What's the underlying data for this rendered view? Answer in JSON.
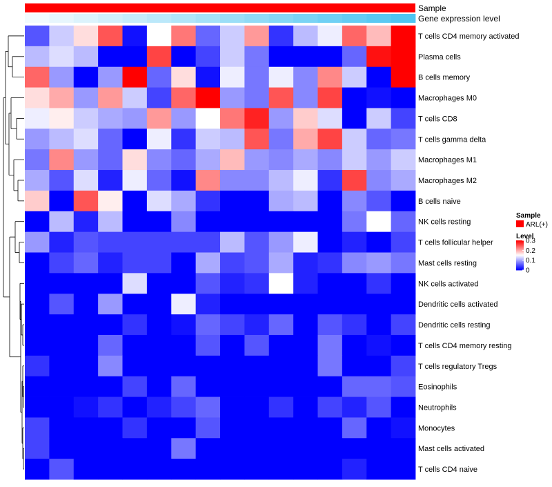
{
  "chart_data": {
    "type": "heatmap",
    "annotation_tracks": [
      {
        "name": "Sample",
        "color": "#ff0000"
      },
      {
        "name": "Gene expression level",
        "color_from": "#f2fafe",
        "color_to": "#4ec5f1"
      }
    ],
    "rows": [
      "T cells CD4 memory activated",
      "Plasma cells",
      "B cells memory",
      "Macrophages M0",
      "T cells CD8",
      "T cells gamma delta",
      "Macrophages M1",
      "Macrophages M2",
      "B cells naive",
      "NK cells resting",
      "T cells follicular helper",
      "Mast cells resting",
      "NK cells activated",
      "Dendritic cells activated",
      "Dendritic cells resting",
      "T cells CD4 memory resting",
      "T cells regulatory  Tregs",
      "Eosinophils",
      "Neutrophils",
      "Monocytes",
      "Mast cells activated",
      "T cells CD4 naive"
    ],
    "n_columns": 16,
    "values": [
      [
        0.05,
        0.12,
        0.17,
        0.25,
        0.01,
        0.15,
        0.23,
        0.06,
        0.12,
        0.21,
        0.03,
        0.11,
        0.14,
        0.24,
        0.19,
        0.3
      ],
      [
        0.11,
        0.13,
        0.11,
        0.0,
        0.0,
        0.26,
        0.0,
        0.04,
        0.12,
        0.07,
        0.0,
        0.0,
        0.0,
        0.06,
        0.29,
        0.3
      ],
      [
        0.24,
        0.09,
        0.0,
        0.09,
        0.3,
        0.06,
        0.17,
        0.01,
        0.14,
        0.07,
        0.14,
        0.08,
        0.22,
        0.12,
        0.0,
        0.3
      ],
      [
        0.17,
        0.2,
        0.09,
        0.21,
        0.12,
        0.04,
        0.24,
        0.3,
        0.09,
        0.07,
        0.25,
        0.08,
        0.26,
        0.0,
        0.01,
        0.0
      ],
      [
        0.14,
        0.16,
        0.12,
        0.1,
        0.09,
        0.21,
        0.09,
        0.15,
        0.23,
        0.28,
        0.09,
        0.18,
        0.13,
        0.0,
        0.12,
        0.04
      ],
      [
        0.09,
        0.11,
        0.13,
        0.06,
        0.0,
        0.14,
        0.03,
        0.12,
        0.11,
        0.25,
        0.07,
        0.2,
        0.26,
        0.12,
        0.06,
        0.07
      ],
      [
        0.07,
        0.22,
        0.09,
        0.06,
        0.17,
        0.08,
        0.06,
        0.1,
        0.19,
        0.09,
        0.08,
        0.1,
        0.08,
        0.12,
        0.09,
        0.12
      ],
      [
        0.1,
        0.05,
        0.13,
        0.02,
        0.14,
        0.06,
        0.01,
        0.22,
        0.08,
        0.08,
        0.11,
        0.14,
        0.03,
        0.26,
        0.08,
        0.1
      ],
      [
        0.18,
        0.0,
        0.25,
        0.16,
        0.0,
        0.13,
        0.1,
        0.03,
        0.0,
        0.0,
        0.1,
        0.11,
        0.0,
        0.08,
        0.05,
        0.0
      ],
      [
        0.0,
        0.11,
        0.02,
        0.11,
        0.0,
        0.0,
        0.08,
        0.0,
        0.0,
        0.0,
        0.0,
        0.0,
        0.0,
        0.07,
        0.15,
        0.06
      ],
      [
        0.09,
        0.02,
        0.05,
        0.04,
        0.04,
        0.04,
        0.04,
        0.04,
        0.11,
        0.05,
        0.09,
        0.14,
        0.0,
        0.02,
        0.0,
        0.04
      ],
      [
        0.0,
        0.04,
        0.06,
        0.02,
        0.04,
        0.04,
        0.0,
        0.1,
        0.04,
        0.05,
        0.1,
        0.02,
        0.03,
        0.08,
        0.09,
        0.07
      ],
      [
        0.0,
        0.0,
        0.0,
        0.0,
        0.13,
        0.0,
        0.0,
        0.05,
        0.02,
        0.03,
        0.15,
        0.02,
        0.0,
        0.0,
        0.03,
        0.0
      ],
      [
        0.0,
        0.05,
        0.0,
        0.09,
        0.0,
        0.0,
        0.14,
        0.02,
        0.0,
        0.0,
        0.0,
        0.0,
        0.0,
        0.0,
        0.0,
        0.0
      ],
      [
        0.0,
        0.0,
        0.0,
        0.0,
        0.03,
        0.0,
        0.01,
        0.06,
        0.04,
        0.02,
        0.06,
        0.0,
        0.05,
        0.03,
        0.0,
        0.04
      ],
      [
        0.0,
        0.0,
        0.0,
        0.06,
        0.0,
        0.0,
        0.0,
        0.05,
        0.0,
        0.05,
        0.0,
        0.0,
        0.07,
        0.0,
        0.01,
        0.0
      ],
      [
        0.03,
        0.0,
        0.0,
        0.08,
        0.0,
        0.0,
        0.0,
        0.0,
        0.0,
        0.0,
        0.0,
        0.0,
        0.07,
        0.0,
        0.0,
        0.04
      ],
      [
        0.0,
        0.0,
        0.0,
        0.0,
        0.04,
        0.0,
        0.06,
        0.0,
        0.0,
        0.0,
        0.0,
        0.0,
        0.0,
        0.06,
        0.06,
        0.05
      ],
      [
        0.0,
        0.0,
        0.01,
        0.03,
        0.0,
        0.02,
        0.04,
        0.06,
        0.0,
        0.0,
        0.03,
        0.0,
        0.04,
        0.02,
        0.05,
        0.0
      ],
      [
        0.04,
        0.0,
        0.0,
        0.0,
        0.03,
        0.0,
        0.0,
        0.05,
        0.0,
        0.0,
        0.0,
        0.0,
        0.0,
        0.06,
        0.0,
        0.01
      ],
      [
        0.04,
        0.0,
        0.0,
        0.0,
        0.0,
        0.0,
        0.07,
        0.0,
        0.0,
        0.0,
        0.0,
        0.0,
        0.0,
        0.0,
        0.0,
        0.0
      ],
      [
        0.0,
        0.05,
        0.0,
        0.0,
        0.0,
        0.0,
        0.0,
        0.0,
        0.0,
        0.0,
        0.0,
        0.0,
        0.0,
        0.02,
        0.0,
        0.0
      ]
    ],
    "color_scale": {
      "min": 0,
      "mid": 0.15,
      "max": 0.3,
      "low": "#0000ff",
      "midcolor": "#ffffff",
      "high": "#ff0000"
    },
    "legend": {
      "sample_title": "Sample",
      "sample_entry": "ARL(+)",
      "sample_color": "#ff0000",
      "level_title": "Level",
      "level_ticks": [
        "0.3",
        "0.2",
        "0.1",
        "0"
      ]
    },
    "dendrogram": "row clustering tree on left"
  }
}
